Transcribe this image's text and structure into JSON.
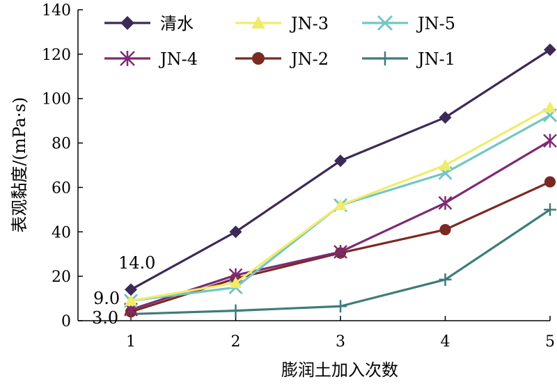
{
  "chart_data": {
    "type": "line",
    "title": "",
    "xlabel": "膨润土加入次数",
    "ylabel": "表观黏度/(mPa·s)",
    "x": [
      1,
      2,
      3,
      4,
      5
    ],
    "xlim": [
      1,
      5
    ],
    "ylim": [
      0,
      140
    ],
    "xticks": [
      "1",
      "2",
      "3",
      "4",
      "5"
    ],
    "yticks": [
      "0",
      "20",
      "40",
      "60",
      "80",
      "100",
      "120",
      "140"
    ],
    "grid": false,
    "legend_position": "top",
    "annotations": [
      {
        "text": "14.0",
        "x": 1,
        "y": 14.0
      },
      {
        "text": "9.0",
        "x": 1,
        "y": 9.0
      },
      {
        "text": "3.0",
        "x": 1,
        "y": 3.0
      }
    ],
    "series": [
      {
        "name": "清水",
        "values": [
          14.0,
          40,
          72,
          91.5,
          122
        ],
        "color": "#3b2a57",
        "marker": "diamond"
      },
      {
        "name": "JN-3",
        "values": [
          9.0,
          17,
          52,
          70,
          96
        ],
        "color": "#f0ec6a",
        "marker": "triangle"
      },
      {
        "name": "JN-5",
        "values": [
          9.0,
          15,
          52,
          66.5,
          92.5
        ],
        "color": "#72c6c4",
        "marker": "x"
      },
      {
        "name": "JN-4",
        "values": [
          5,
          20.5,
          31,
          53,
          81
        ],
        "color": "#7d2a73",
        "marker": "star"
      },
      {
        "name": "JN-2",
        "values": [
          4,
          19,
          30.5,
          41,
          62.5
        ],
        "color": "#7a2a22",
        "marker": "circle"
      },
      {
        "name": "JN-1",
        "values": [
          3.0,
          4.5,
          6.5,
          18.5,
          50
        ],
        "color": "#3e7c7a",
        "marker": "plus"
      }
    ]
  }
}
